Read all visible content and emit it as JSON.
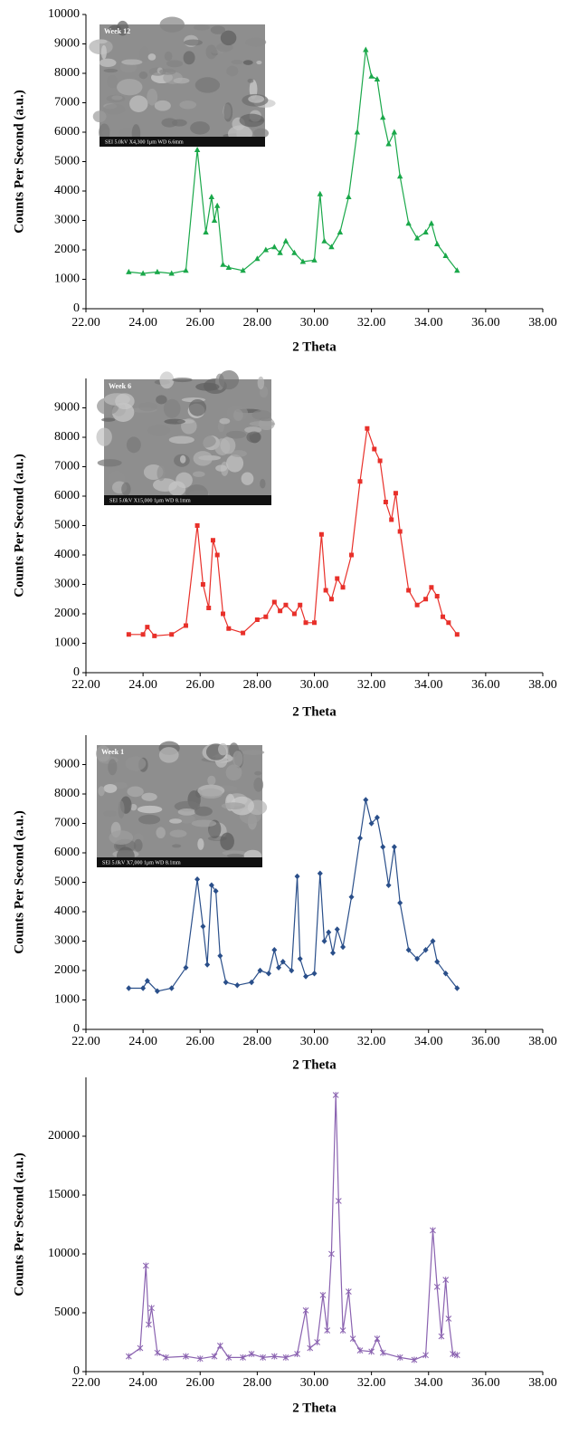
{
  "chart_data": [
    {
      "type": "line",
      "marker": "triangle",
      "color": "#1aa84a",
      "xlabel": "2 Theta",
      "ylabel": "Counts Per Second (a.u.)",
      "inset": {
        "label": "Week 12",
        "caption": "SEI 5.0kV X4,300 1μm WD 6.6mm"
      },
      "x": [
        23.5,
        24.0,
        24.5,
        25.0,
        25.5,
        25.9,
        26.2,
        26.4,
        26.5,
        26.6,
        26.8,
        27.0,
        27.5,
        28.0,
        28.3,
        28.6,
        28.8,
        29.0,
        29.3,
        29.6,
        30.0,
        30.2,
        30.35,
        30.6,
        30.9,
        31.2,
        31.5,
        31.8,
        32.0,
        32.2,
        32.4,
        32.6,
        32.8,
        33.0,
        33.3,
        33.6,
        33.9,
        34.1,
        34.3,
        34.6,
        35.0
      ],
      "values": [
        1250,
        1200,
        1250,
        1200,
        1300,
        5400,
        2600,
        3800,
        3000,
        3500,
        1500,
        1400,
        1300,
        1700,
        2000,
        2100,
        1900,
        2300,
        1900,
        1600,
        1650,
        3900,
        2300,
        2100,
        2600,
        3800,
        6000,
        8800,
        7900,
        7800,
        6500,
        5600,
        6000,
        4500,
        2900,
        2400,
        2600,
        2900,
        2200,
        1800,
        1300
      ],
      "xlim": [
        22,
        38
      ],
      "xticks": [
        {
          "value": 22,
          "label": "22.00"
        },
        {
          "value": 24,
          "label": "24.00"
        },
        {
          "value": 26,
          "label": "26.00"
        },
        {
          "value": 28,
          "label": "28.00"
        },
        {
          "value": 30,
          "label": "30.00"
        },
        {
          "value": 32,
          "label": "32.00"
        },
        {
          "value": 34,
          "label": "34.00"
        },
        {
          "value": 36,
          "label": "36.00"
        },
        {
          "value": 38,
          "label": "38.00"
        }
      ],
      "ylim": [
        0,
        10000
      ],
      "yticks": [
        0,
        1000,
        2000,
        3000,
        4000,
        5000,
        6000,
        7000,
        8000,
        9000,
        10000
      ]
    },
    {
      "type": "line",
      "marker": "square",
      "color": "#e8302a",
      "xlabel": "2 Theta",
      "ylabel": "Counts Per Second (a.u.)",
      "inset": {
        "label": "Week 6",
        "caption": "SEI 5.0kV X15,000 1μm WD 8.1mm"
      },
      "x": [
        23.5,
        24.0,
        24.15,
        24.4,
        25.0,
        25.5,
        25.9,
        26.1,
        26.3,
        26.45,
        26.6,
        26.8,
        27.0,
        27.5,
        28.0,
        28.3,
        28.6,
        28.8,
        29.0,
        29.3,
        29.5,
        29.7,
        30.0,
        30.25,
        30.4,
        30.6,
        30.8,
        31.0,
        31.3,
        31.6,
        31.85,
        32.1,
        32.3,
        32.5,
        32.7,
        32.85,
        33.0,
        33.3,
        33.6,
        33.9,
        34.1,
        34.3,
        34.5,
        34.7,
        35.0
      ],
      "values": [
        1300,
        1300,
        1550,
        1250,
        1300,
        1600,
        5000,
        3000,
        2200,
        4500,
        4000,
        2000,
        1500,
        1350,
        1800,
        1900,
        2400,
        2100,
        2300,
        2000,
        2300,
        1700,
        1700,
        4700,
        2800,
        2500,
        3200,
        2900,
        4000,
        6500,
        8300,
        7600,
        7200,
        5800,
        5200,
        6100,
        4800,
        2800,
        2300,
        2500,
        2900,
        2600,
        1900,
        1700,
        1300
      ],
      "xlim": [
        22,
        38
      ],
      "xticks": [
        {
          "value": 22,
          "label": "22.00"
        },
        {
          "value": 24,
          "label": "24.00"
        },
        {
          "value": 26,
          "label": "26.00"
        },
        {
          "value": 28,
          "label": "28.00"
        },
        {
          "value": 30,
          "label": "30.00"
        },
        {
          "value": 32,
          "label": "32.00"
        },
        {
          "value": 34,
          "label": "34.00"
        },
        {
          "value": 36,
          "label": "36.00"
        },
        {
          "value": 38,
          "label": "38.00"
        }
      ],
      "ylim": [
        0,
        10000
      ],
      "yticks": [
        0,
        1000,
        2000,
        3000,
        4000,
        5000,
        6000,
        7000,
        8000,
        9000
      ]
    },
    {
      "type": "line",
      "marker": "diamond",
      "color": "#2a4f8a",
      "xlabel": "2 Theta",
      "ylabel": "Counts Per Second (a.u.)",
      "inset": {
        "label": "Week 1",
        "caption": "SEI 5.0kV X7,000 1μm WD 8.1mm"
      },
      "x": [
        23.5,
        24.0,
        24.15,
        24.5,
        25.0,
        25.5,
        25.9,
        26.1,
        26.25,
        26.4,
        26.55,
        26.7,
        26.9,
        27.3,
        27.8,
        28.1,
        28.4,
        28.6,
        28.75,
        28.9,
        29.2,
        29.4,
        29.5,
        29.7,
        30.0,
        30.2,
        30.35,
        30.5,
        30.65,
        30.8,
        31.0,
        31.3,
        31.6,
        31.8,
        32.0,
        32.2,
        32.4,
        32.6,
        32.8,
        33.0,
        33.3,
        33.6,
        33.9,
        34.15,
        34.3,
        34.6,
        35.0
      ],
      "values": [
        1400,
        1400,
        1650,
        1300,
        1400,
        2100,
        5100,
        3500,
        2200,
        4900,
        4700,
        2500,
        1600,
        1500,
        1600,
        2000,
        1900,
        2700,
        2100,
        2300,
        2000,
        5200,
        2400,
        1800,
        1900,
        5300,
        3000,
        3300,
        2600,
        3400,
        2800,
        4500,
        6500,
        7800,
        7000,
        7200,
        6200,
        4900,
        6200,
        4300,
        2700,
        2400,
        2700,
        3000,
        2300,
        1900,
        1400
      ],
      "xlim": [
        22,
        38
      ],
      "xticks": [
        {
          "value": 22,
          "label": "22.00"
        },
        {
          "value": 24,
          "label": "24.00"
        },
        {
          "value": 26,
          "label": "26.00"
        },
        {
          "value": 28,
          "label": "28.00"
        },
        {
          "value": 30,
          "label": "30.00"
        },
        {
          "value": 32,
          "label": "32.00"
        },
        {
          "value": 34,
          "label": "34.00"
        },
        {
          "value": 36,
          "label": "36.00"
        },
        {
          "value": 38,
          "label": "38.00"
        }
      ],
      "ylim": [
        0,
        10000
      ],
      "yticks": [
        0,
        1000,
        2000,
        3000,
        4000,
        5000,
        6000,
        7000,
        8000,
        9000
      ]
    },
    {
      "type": "line",
      "marker": "star",
      "color": "#8a62b0",
      "xlabel": "2 Theta",
      "ylabel": "Counts Per Second (a.u.)",
      "x": [
        23.5,
        23.9,
        24.1,
        24.2,
        24.3,
        24.5,
        24.8,
        25.5,
        26.0,
        26.5,
        26.7,
        27.0,
        27.5,
        27.8,
        28.2,
        28.6,
        29.0,
        29.4,
        29.7,
        29.85,
        30.1,
        30.3,
        30.45,
        30.6,
        30.75,
        30.85,
        31.0,
        31.2,
        31.35,
        31.6,
        32.0,
        32.2,
        32.4,
        33.0,
        33.5,
        33.9,
        34.15,
        34.3,
        34.45,
        34.6,
        34.7,
        34.85,
        35.0
      ],
      "values": [
        1300,
        2000,
        9000,
        4000,
        5400,
        1600,
        1200,
        1300,
        1100,
        1300,
        2200,
        1200,
        1200,
        1500,
        1200,
        1300,
        1200,
        1500,
        5200,
        2000,
        2500,
        6500,
        3500,
        10000,
        23500,
        14500,
        3500,
        6800,
        2800,
        1800,
        1700,
        2800,
        1600,
        1200,
        1000,
        1400,
        12000,
        7200,
        3000,
        7800,
        4500,
        1500,
        1400
      ],
      "xlim": [
        22,
        38
      ],
      "xticks": [
        {
          "value": 22,
          "label": "22.00"
        },
        {
          "value": 24,
          "label": "24.00"
        },
        {
          "value": 26,
          "label": "26.00"
        },
        {
          "value": 28,
          "label": "28.00"
        },
        {
          "value": 30,
          "label": "30.00"
        },
        {
          "value": 32,
          "label": "32.00"
        },
        {
          "value": 34,
          "label": "34.00"
        },
        {
          "value": 36,
          "label": "36.00"
        },
        {
          "value": 38,
          "label": "38.00"
        }
      ],
      "ylim": [
        0,
        25000
      ],
      "yticks": [
        0,
        5000,
        10000,
        15000,
        20000
      ]
    }
  ]
}
